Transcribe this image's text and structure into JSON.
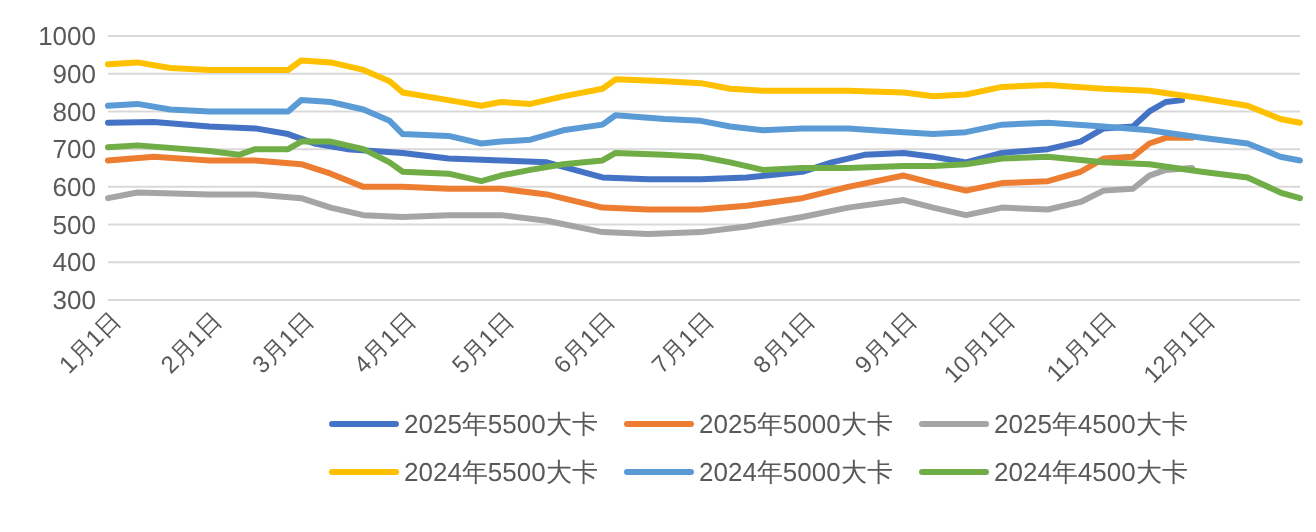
{
  "chart_data": {
    "type": "line",
    "ylim": [
      300,
      1000
    ],
    "yticks": [
      300,
      400,
      500,
      600,
      700,
      800,
      900,
      1000
    ],
    "xlim": [
      "--01-01",
      "--12-31"
    ],
    "xticks": [
      {
        "value": "--01-01",
        "label": "1月1日"
      },
      {
        "value": "--02-01",
        "label": "2月1日"
      },
      {
        "value": "--03-01",
        "label": "3月1日"
      },
      {
        "value": "--04-01",
        "label": "4月1日"
      },
      {
        "value": "--05-01",
        "label": "5月1日"
      },
      {
        "value": "--06-01",
        "label": "6月1日"
      },
      {
        "value": "--07-01",
        "label": "7月1日"
      },
      {
        "value": "--08-01",
        "label": "8月1日"
      },
      {
        "value": "--09-01",
        "label": "9月1日"
      },
      {
        "value": "--10-01",
        "label": "10月1日"
      },
      {
        "value": "--11-01",
        "label": "11月1日"
      },
      {
        "value": "--12-01",
        "label": "12月1日"
      }
    ],
    "grid": "y",
    "legend": "bottom",
    "marker": "none",
    "line_style": "solid",
    "series": [
      {
        "name": "2025年5500大卡",
        "color": "#4472c4",
        "x": [
          "--01-01",
          "--01-15",
          "--02-01",
          "--02-15",
          "--02-25",
          "--03-05",
          "--03-15",
          "--04-01",
          "--04-15",
          "--05-01",
          "--05-15",
          "--06-01",
          "--06-15",
          "--07-01",
          "--07-15",
          "--08-01",
          "--08-10",
          "--08-20",
          "--09-01",
          "--09-10",
          "--09-20",
          "--10-01",
          "--10-15",
          "--10-25",
          "--11-01",
          "--11-10",
          "--11-15",
          "--11-20",
          "--11-25"
        ],
        "values": [
          770,
          772,
          760,
          755,
          740,
          715,
          700,
          690,
          675,
          670,
          665,
          625,
          620,
          620,
          625,
          640,
          665,
          685,
          690,
          680,
          665,
          690,
          700,
          720,
          755,
          760,
          800,
          825,
          830
        ]
      },
      {
        "name": "2025年5000大卡",
        "color": "#ed7d31",
        "x": [
          "--01-01",
          "--01-15",
          "--02-01",
          "--02-15",
          "--03-01",
          "--03-10",
          "--03-20",
          "--04-01",
          "--04-15",
          "--05-01",
          "--05-15",
          "--06-01",
          "--06-15",
          "--07-01",
          "--07-15",
          "--08-01",
          "--08-15",
          "--09-01",
          "--09-10",
          "--09-20",
          "--10-01",
          "--10-15",
          "--10-25",
          "--11-01",
          "--11-10",
          "--11-15",
          "--11-20",
          "--11-28"
        ],
        "values": [
          670,
          680,
          670,
          670,
          660,
          635,
          600,
          600,
          595,
          595,
          580,
          545,
          540,
          540,
          550,
          570,
          600,
          630,
          610,
          590,
          610,
          615,
          640,
          675,
          680,
          715,
          730,
          730
        ]
      },
      {
        "name": "2025年4500大卡",
        "color": "#a5a5a5",
        "x": [
          "--01-01",
          "--01-10",
          "--02-01",
          "--02-15",
          "--03-01",
          "--03-10",
          "--03-20",
          "--04-01",
          "--04-15",
          "--05-01",
          "--05-15",
          "--06-01",
          "--06-15",
          "--07-01",
          "--07-15",
          "--08-01",
          "--08-15",
          "--09-01",
          "--09-10",
          "--09-20",
          "--10-01",
          "--10-15",
          "--10-25",
          "--11-01",
          "--11-10",
          "--11-15",
          "--11-20",
          "--11-28"
        ],
        "values": [
          570,
          585,
          580,
          580,
          570,
          545,
          525,
          520,
          525,
          525,
          510,
          480,
          475,
          480,
          495,
          520,
          545,
          565,
          545,
          525,
          545,
          540,
          560,
          590,
          595,
          630,
          645,
          650
        ]
      },
      {
        "name": "2024年5500大卡",
        "color": "#ffc000",
        "x": [
          "--01-01",
          "--01-10",
          "--01-20",
          "--02-01",
          "--02-15",
          "--02-25",
          "--03-01",
          "--03-10",
          "--03-20",
          "--03-28",
          "--04-01",
          "--04-15",
          "--04-25",
          "--05-01",
          "--05-10",
          "--05-20",
          "--06-01",
          "--06-05",
          "--06-20",
          "--07-01",
          "--07-10",
          "--07-20",
          "--08-01",
          "--08-15",
          "--09-01",
          "--09-10",
          "--09-20",
          "--10-01",
          "--10-15",
          "--11-01",
          "--11-15",
          "--12-01",
          "--12-15",
          "--12-25",
          "--12-31"
        ],
        "values": [
          925,
          930,
          915,
          910,
          910,
          910,
          935,
          930,
          910,
          880,
          850,
          830,
          815,
          825,
          820,
          840,
          860,
          885,
          880,
          875,
          860,
          855,
          855,
          855,
          850,
          840,
          845,
          865,
          870,
          860,
          855,
          835,
          815,
          780,
          770
        ]
      },
      {
        "name": "2024年5000大卡",
        "color": "#5b9bd5",
        "x": [
          "--01-01",
          "--01-10",
          "--01-20",
          "--02-01",
          "--02-15",
          "--02-25",
          "--03-01",
          "--03-10",
          "--03-20",
          "--03-28",
          "--04-01",
          "--04-15",
          "--04-25",
          "--05-01",
          "--05-10",
          "--05-20",
          "--06-01",
          "--06-05",
          "--06-20",
          "--07-01",
          "--07-10",
          "--07-20",
          "--08-01",
          "--08-15",
          "--09-01",
          "--09-10",
          "--09-20",
          "--10-01",
          "--10-15",
          "--11-01",
          "--11-15",
          "--12-01",
          "--12-15",
          "--12-25",
          "--12-31"
        ],
        "values": [
          815,
          820,
          805,
          800,
          800,
          800,
          830,
          825,
          805,
          775,
          740,
          735,
          715,
          720,
          725,
          750,
          765,
          790,
          780,
          775,
          760,
          750,
          755,
          755,
          745,
          740,
          745,
          765,
          770,
          760,
          750,
          730,
          715,
          680,
          670
        ]
      },
      {
        "name": "2024年4500大卡",
        "color": "#70ad47",
        "x": [
          "--01-01",
          "--01-10",
          "--02-01",
          "--02-10",
          "--02-15",
          "--02-25",
          "--03-01",
          "--03-10",
          "--03-20",
          "--03-28",
          "--04-01",
          "--04-15",
          "--04-25",
          "--05-01",
          "--05-10",
          "--05-20",
          "--06-01",
          "--06-05",
          "--06-20",
          "--07-01",
          "--07-10",
          "--07-20",
          "--08-01",
          "--08-15",
          "--09-01",
          "--09-10",
          "--09-20",
          "--10-01",
          "--10-15",
          "--11-01",
          "--11-15",
          "--12-01",
          "--12-15",
          "--12-25",
          "--12-31"
        ],
        "values": [
          705,
          710,
          695,
          685,
          700,
          700,
          720,
          720,
          700,
          665,
          640,
          635,
          615,
          630,
          645,
          660,
          670,
          690,
          685,
          680,
          665,
          645,
          650,
          650,
          655,
          655,
          660,
          675,
          680,
          665,
          660,
          640,
          625,
          585,
          570
        ]
      }
    ]
  }
}
